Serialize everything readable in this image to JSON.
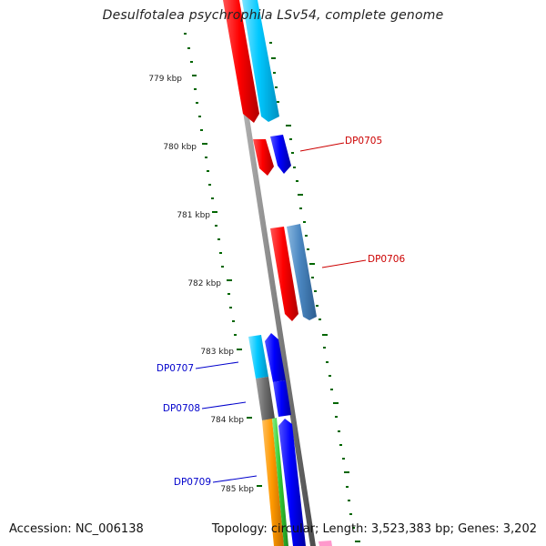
{
  "title": "Desulfotalea psychrophila LSv54, complete genome",
  "footer": {
    "accession": "Accession: NC_006138",
    "topology": "Topology: circular; Length: 3,523,383 bp; Genes: 3,202"
  },
  "ticks": [
    "779 kbp",
    "780 kbp",
    "781 kbp",
    "782 kbp",
    "783 kbp",
    "784 kbp",
    "785 kbp"
  ],
  "gene_labels": [
    {
      "name": "DP0705",
      "color": "#cc0000"
    },
    {
      "name": "DP0706",
      "color": "#cc0000"
    },
    {
      "name": "DP0707",
      "color": "#0000cc"
    },
    {
      "name": "DP0708",
      "color": "#0000cc"
    },
    {
      "name": "DP0709",
      "color": "#0000cc"
    }
  ],
  "colors": {
    "red": "#ff0000",
    "sky_blue": "#00c8ff",
    "blue": "#0000ff",
    "steel_blue": "#4a86c0",
    "gray": "#707070",
    "orange": "#ff9900",
    "green": "#33cc33",
    "pink": "#ff99cc",
    "tick_green": "#006600"
  }
}
